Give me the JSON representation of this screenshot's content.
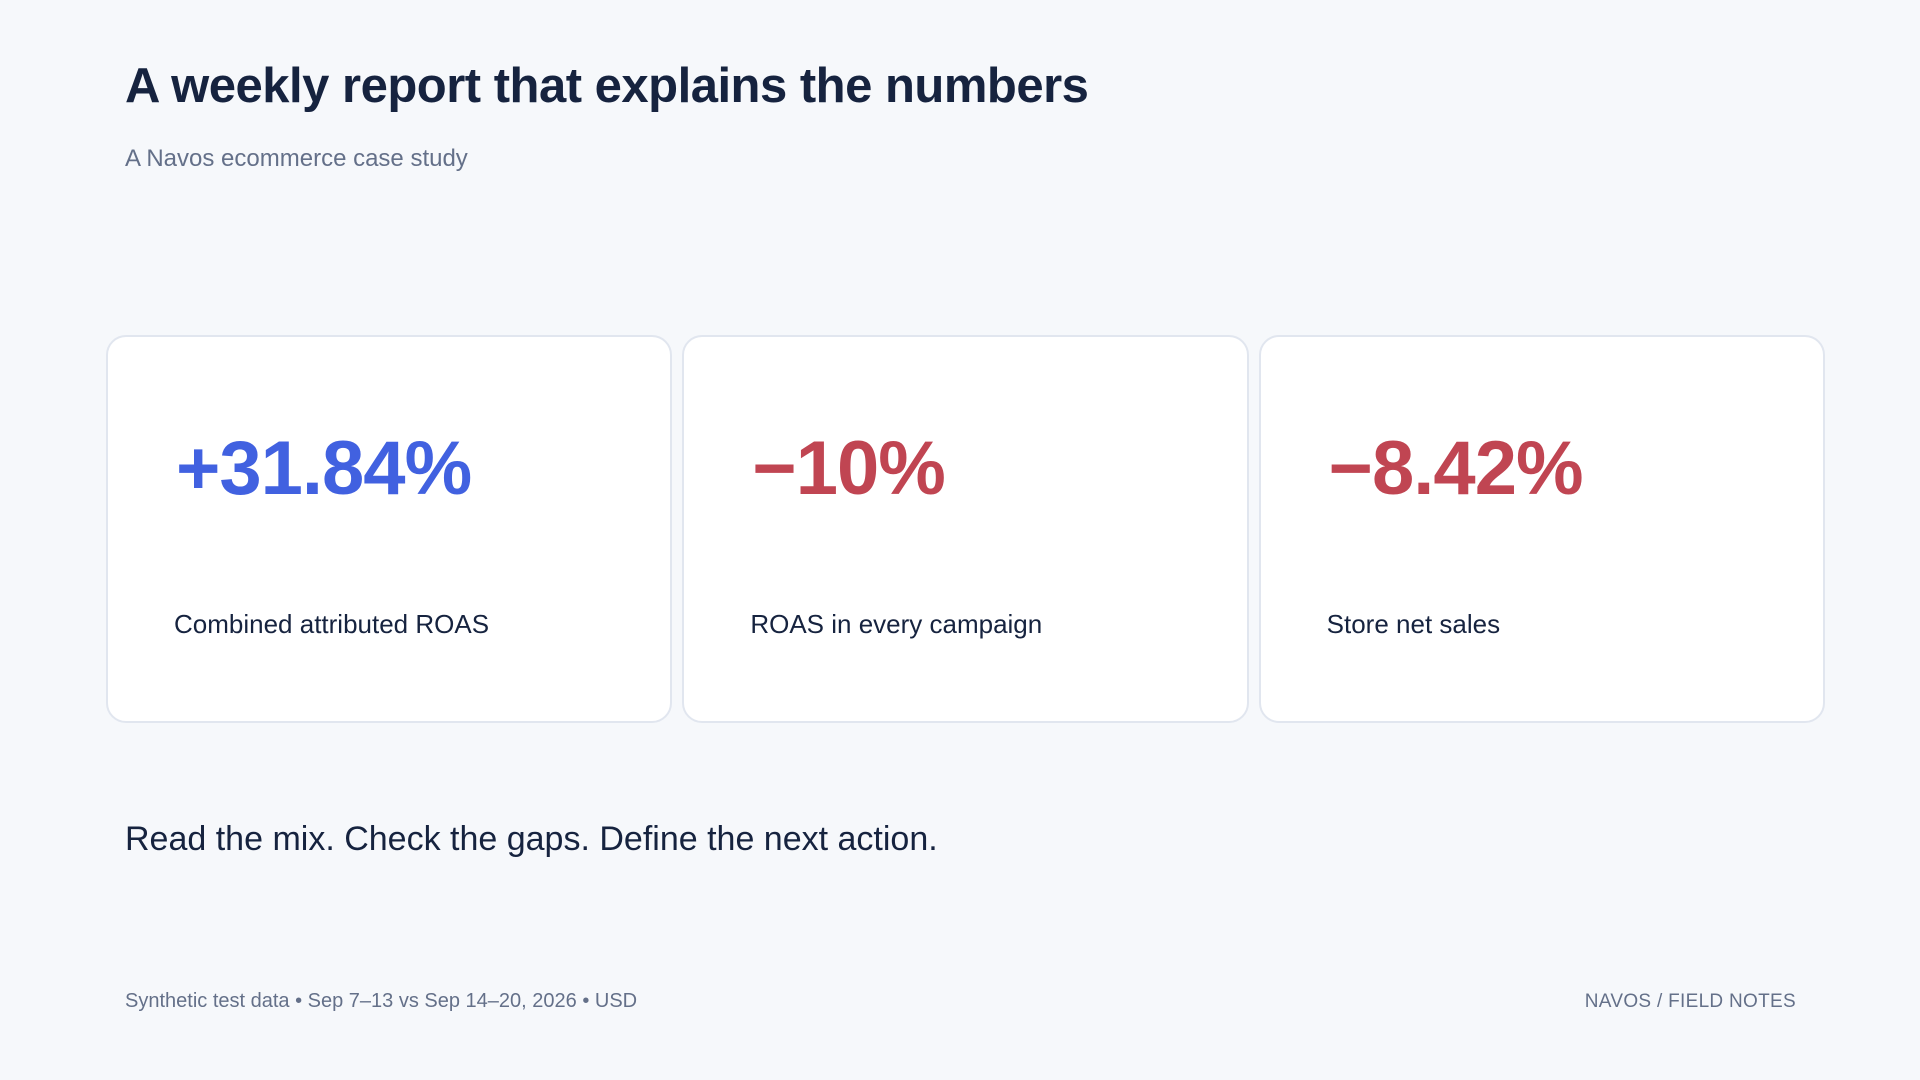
{
  "header": {
    "title": "A weekly report that explains the numbers",
    "subtitle": "A Navos ecommerce case study"
  },
  "cards": [
    {
      "value": "+31.84%",
      "label": "Combined attributed ROAS",
      "tone": "positive"
    },
    {
      "value": "−10%",
      "label": "ROAS in every campaign",
      "tone": "negative"
    },
    {
      "value": "−8.42%",
      "label": "Store net sales",
      "tone": "negative"
    }
  ],
  "tagline": "Read the mix. Check the gaps. Define the next action.",
  "footer": {
    "left": "Synthetic test data • Sep 7–13 vs Sep 14–20, 2026 • USD",
    "right": "NAVOS / FIELD NOTES"
  },
  "colors": {
    "background": "#f6f8fb",
    "text": "#16233f",
    "muted": "#647089",
    "positive": "#4161e0",
    "negative": "#c04552",
    "card_border": "#e1e6ef"
  }
}
